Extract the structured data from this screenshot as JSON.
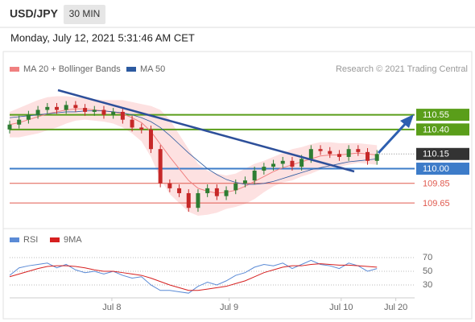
{
  "header": {
    "symbol": "USD/JPY",
    "timeframe": "30 MIN",
    "timestamp": "Monday, July 12, 2021 5:31:46 AM CET",
    "source": "Research © 2021 Trading Central"
  },
  "chart_data": [
    {
      "type": "candlestick",
      "xlim": [
        0,
        42.4
      ],
      "ylim": [
        109.38,
        110.9
      ],
      "up_color": "#2e7d32",
      "down_color": "#c62828",
      "open": [
        110.4,
        110.45,
        110.5,
        110.55,
        110.6,
        110.63,
        110.6,
        110.65,
        110.62,
        110.58,
        110.6,
        110.55,
        110.58,
        110.5,
        110.42,
        110.4,
        110.2,
        109.85,
        109.8,
        109.75,
        109.6,
        109.75,
        109.8,
        109.72,
        109.78,
        109.85,
        109.88,
        109.98,
        110.02,
        110.05,
        110.08,
        110.02,
        110.1,
        110.2,
        110.18,
        110.15,
        110.12,
        110.2,
        110.17,
        110.08
      ],
      "high": [
        110.49,
        110.54,
        110.59,
        110.64,
        110.67,
        110.67,
        110.69,
        110.69,
        110.66,
        110.64,
        110.64,
        110.62,
        110.62,
        110.54,
        110.46,
        110.44,
        110.24,
        109.89,
        109.84,
        109.79,
        109.79,
        109.84,
        109.84,
        109.82,
        109.89,
        109.92,
        110.02,
        110.06,
        110.09,
        110.12,
        110.12,
        110.14,
        110.24,
        110.24,
        110.22,
        110.19,
        110.24,
        110.24,
        110.21,
        110.19
      ],
      "low": [
        110.36,
        110.41,
        110.46,
        110.51,
        110.56,
        110.56,
        110.56,
        110.58,
        110.54,
        110.54,
        110.51,
        110.51,
        110.46,
        110.38,
        110.36,
        110.16,
        109.81,
        109.76,
        109.71,
        109.56,
        109.56,
        109.71,
        109.68,
        109.68,
        109.74,
        109.81,
        109.84,
        109.94,
        109.98,
        110.01,
        109.98,
        109.98,
        110.06,
        110.14,
        110.11,
        110.08,
        110.08,
        110.13,
        110.04,
        110.04
      ],
      "close": [
        110.45,
        110.5,
        110.55,
        110.6,
        110.63,
        110.6,
        110.65,
        110.62,
        110.58,
        110.6,
        110.55,
        110.58,
        110.5,
        110.42,
        110.4,
        110.2,
        109.85,
        109.8,
        109.75,
        109.6,
        109.75,
        109.8,
        109.72,
        109.78,
        109.85,
        109.88,
        109.98,
        110.02,
        110.05,
        110.08,
        110.02,
        110.1,
        110.2,
        110.18,
        110.15,
        110.12,
        110.2,
        110.17,
        110.08,
        110.15
      ],
      "series": [
        {
          "name": "MA 20 + Bollinger Bands",
          "color": "#f08080",
          "band_color": "#fcd9d9",
          "values": [
            110.45,
            110.47,
            110.5,
            110.53,
            110.56,
            110.58,
            110.6,
            110.61,
            110.61,
            110.6,
            110.59,
            110.58,
            110.56,
            110.52,
            110.47,
            110.38,
            110.25,
            110.12,
            110.0,
            109.88,
            109.8,
            109.77,
            109.75,
            109.76,
            109.78,
            109.82,
            109.87,
            109.92,
            109.97,
            110.01,
            110.04,
            110.07,
            110.1,
            110.13,
            110.14,
            110.14,
            110.15,
            110.16,
            110.15,
            110.14
          ],
          "upper": [
            110.58,
            110.62,
            110.66,
            110.7,
            110.73,
            110.74,
            110.74,
            110.73,
            110.72,
            110.71,
            110.7,
            110.7,
            110.7,
            110.68,
            110.66,
            110.64,
            110.6,
            110.5,
            110.35,
            110.2,
            110.05,
            109.98,
            109.95,
            109.93,
            109.95,
            110.0,
            110.05,
            110.08,
            110.12,
            110.16,
            110.2,
            110.22,
            110.25,
            110.27,
            110.27,
            110.26,
            110.26,
            110.26,
            110.25,
            110.24
          ],
          "lower": [
            110.32,
            110.32,
            110.34,
            110.36,
            110.39,
            110.42,
            110.46,
            110.49,
            110.5,
            110.49,
            110.48,
            110.46,
            110.42,
            110.36,
            110.28,
            110.12,
            109.9,
            109.74,
            109.65,
            109.56,
            109.52,
            109.53,
            109.55,
            109.59,
            109.61,
            109.64,
            109.69,
            109.76,
            109.82,
            109.86,
            109.88,
            109.92,
            109.95,
            109.99,
            110.01,
            110.02,
            110.04,
            110.06,
            110.05,
            110.04
          ]
        },
        {
          "name": "MA 50",
          "color": "#2c5aa0",
          "values": [
            110.52,
            110.53,
            110.54,
            110.55,
            110.56,
            110.57,
            110.58,
            110.58,
            110.59,
            110.59,
            110.59,
            110.58,
            110.57,
            110.55,
            110.52,
            110.48,
            110.42,
            110.34,
            110.25,
            110.16,
            110.08,
            110.0,
            109.94,
            109.89,
            109.86,
            109.84,
            109.84,
            109.85,
            109.87,
            109.9,
            109.93,
            109.96,
            109.99,
            110.01,
            110.03,
            110.05,
            110.07,
            110.08,
            110.09,
            110.1
          ]
        }
      ],
      "levels": [
        {
          "value": 110.55,
          "color": "#5a9e1a",
          "style": "box"
        },
        {
          "value": 110.4,
          "label": "110.40",
          "color": "#5a9e1a",
          "style": "box"
        },
        {
          "value": 110.15,
          "color": "#333333",
          "style": "current"
        },
        {
          "value": 110,
          "label": "110.00",
          "color": "#3d7cc9",
          "style": "box"
        },
        {
          "value": 109.85,
          "color": "#e05a4f",
          "style": "text"
        },
        {
          "value": 109.65,
          "color": "#e05a4f",
          "style": "text"
        }
      ]
    },
    {
      "type": "line",
      "xlim": [
        0,
        42.4
      ],
      "ylim": [
        13.5,
        79.4
      ],
      "yticks": [
        30,
        50,
        70
      ],
      "xticks": [
        {
          "value": 10.85,
          "label": "Jul 8"
        },
        {
          "value": 23.3,
          "label": "Jul 9"
        },
        {
          "value": 35.2,
          "label": "Jul 10"
        },
        {
          "value": 41.0,
          "label": "Jul 20"
        }
      ],
      "series": [
        {
          "name": "RSI",
          "color": "#5b8bd6",
          "values": [
            44,
            55,
            58,
            60,
            62,
            55,
            60,
            52,
            48,
            50,
            46,
            50,
            44,
            40,
            42,
            30,
            22,
            22,
            20,
            18,
            28,
            34,
            30,
            36,
            44,
            48,
            56,
            60,
            58,
            62,
            54,
            60,
            66,
            60,
            58,
            54,
            62,
            58,
            50,
            54
          ]
        },
        {
          "name": "9MA",
          "color": "#d62020",
          "values": [
            42,
            46,
            50,
            54,
            57,
            58,
            58,
            57,
            55,
            52,
            50,
            50,
            48,
            46,
            44,
            40,
            35,
            30,
            26,
            22,
            22,
            24,
            26,
            28,
            32,
            36,
            42,
            48,
            52,
            56,
            58,
            58,
            60,
            61,
            60,
            59,
            59,
            58,
            57,
            56
          ]
        }
      ]
    }
  ]
}
